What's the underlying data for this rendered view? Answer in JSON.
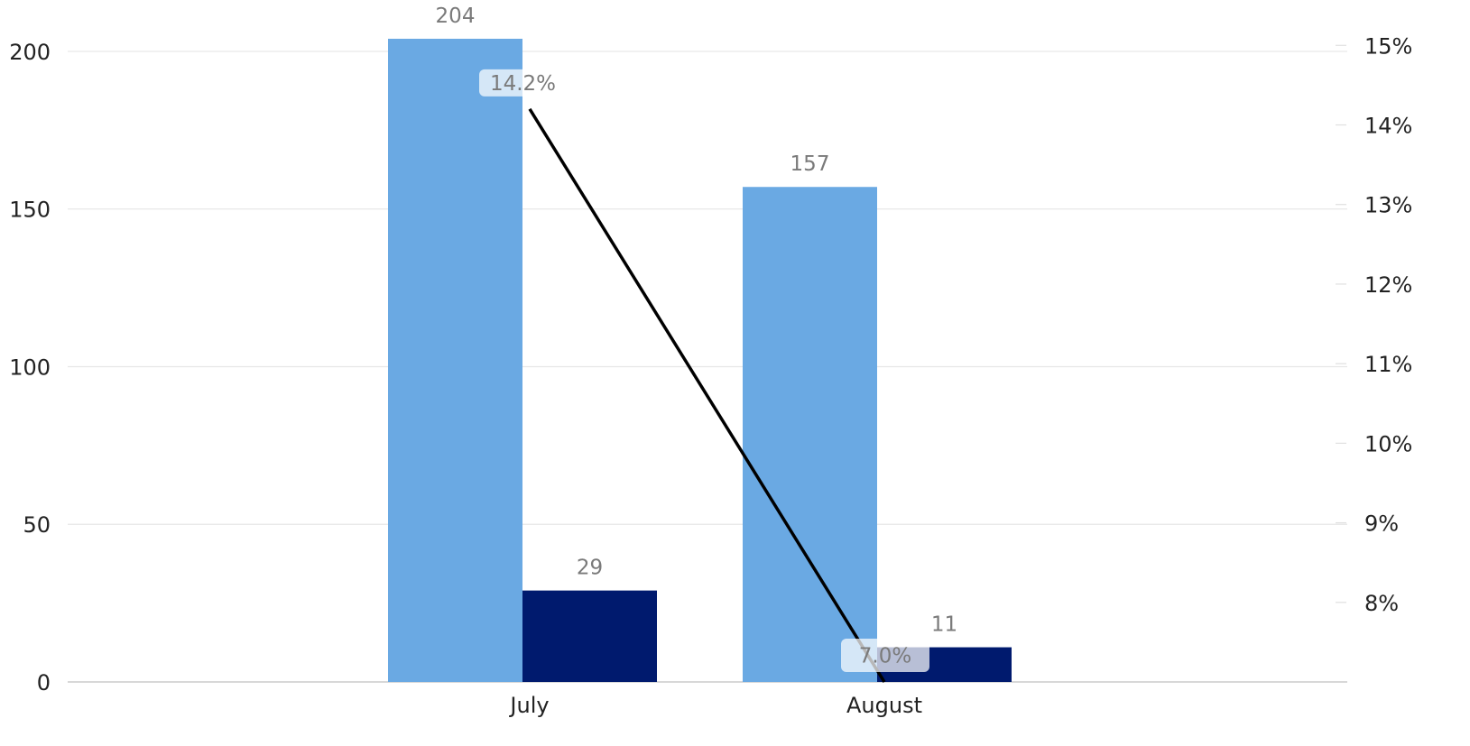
{
  "chart_data": {
    "type": "bar",
    "categories": [
      "July",
      "August"
    ],
    "series": [
      {
        "kind": "bar",
        "values": [
          204,
          157
        ],
        "color": "#6aa9e3"
      },
      {
        "kind": "bar",
        "values": [
          29,
          11
        ],
        "color": "#001a6e"
      },
      {
        "kind": "line",
        "axis": "right",
        "values": [
          14.2,
          7.0
        ],
        "labels": [
          "14.2%",
          "7.0%"
        ],
        "color": "#000000"
      }
    ],
    "bar_labels": [
      [
        "204",
        "157"
      ],
      [
        "29",
        "11"
      ]
    ],
    "left_axis": {
      "ylim": [
        0,
        212
      ],
      "ticks": [
        0,
        50,
        100,
        150,
        200
      ],
      "tick_labels": [
        "0",
        "50",
        "100",
        "150",
        "200"
      ]
    },
    "right_axis": {
      "ylim": [
        7.0,
        15.4
      ],
      "ticks": [
        8,
        9,
        10,
        11,
        12,
        13,
        14,
        15
      ],
      "tick_labels": [
        "8%",
        "9%",
        "10%",
        "11%",
        "12%",
        "13%",
        "14%",
        "15%"
      ]
    },
    "grid": true,
    "legend": "none"
  }
}
